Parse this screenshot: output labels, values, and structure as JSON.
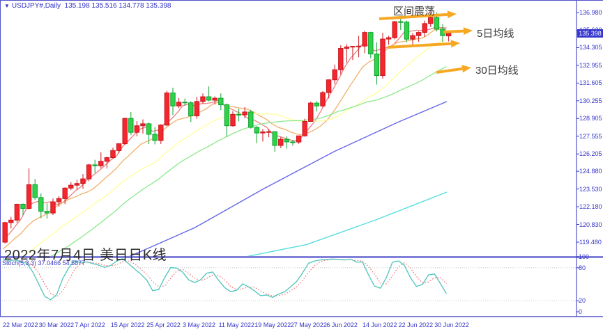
{
  "header": {
    "symbol": "USDJPY#,Daily",
    "ohlc_line": "135.198 135.516 134.778 135.398"
  },
  "annotations": {
    "range_label": "区间震荡",
    "ma5_label": "5日均线",
    "ma30_label": "30日均线",
    "watermark": "2022年7月4日 美日日K线"
  },
  "indicator": {
    "label": "Stoch(5,3,3)",
    "values": "37.0466 54.5877"
  },
  "price_box": {
    "value": "135.398"
  },
  "axes": {
    "price_labels": [
      "136.980",
      "135.630",
      "134.305",
      "132.955",
      "131.605",
      "130.255",
      "128.905",
      "127.555",
      "126.205",
      "124.880",
      "123.530",
      "122.180",
      "120.830",
      "119.480"
    ],
    "stoch_labels": [
      "100",
      "80",
      "20",
      "0"
    ],
    "time_ticks": [
      {
        "label": "22 Mar 2022",
        "i": 0
      },
      {
        "label": "30 Mar 2022",
        "i": 6
      },
      {
        "label": "7 Apr 2022",
        "i": 12
      },
      {
        "label": "15 Apr 2022",
        "i": 18
      },
      {
        "label": "25 Apr 2022",
        "i": 24
      },
      {
        "label": "3 May 2022",
        "i": 30
      },
      {
        "label": "11 May 2022",
        "i": 36
      },
      {
        "label": "19 May 2022",
        "i": 42
      },
      {
        "label": "27 May 2022",
        "i": 48
      },
      {
        "label": "6 Jun 2022",
        "i": 54
      },
      {
        "label": "14 Jun 2022",
        "i": 60
      },
      {
        "label": "22 Jun 2022",
        "i": 66
      },
      {
        "label": "30 Jun 2022",
        "i": 72
      }
    ]
  },
  "colors": {
    "up_fill": "#f4262e",
    "up_stroke": "#c8141c",
    "down_fill": "#30d24a",
    "down_stroke": "#0da02e",
    "ma5": "#ef7f7f",
    "ma10": "#f2b06a",
    "ma20": "#ffff99",
    "ma30": "#8ce98c",
    "ma60": "#6666e8",
    "maLong": "#55dede",
    "stoch_k": "#57c7c0",
    "stoch_d": "#f36a6a",
    "arrow": "#f7a823",
    "axis_text": "#3434c8",
    "frame": "#5050c8",
    "divider": "#8080d8",
    "grid_dots": "#c9c9c9",
    "price_box_bg": "#3737cf"
  },
  "chart_data": {
    "type": "candlestick",
    "symbol": "USDJPY#",
    "timeframe": "Daily",
    "title": "2022年7月4日 美日日K线",
    "ylim": [
      119.48,
      136.98
    ],
    "stoch_ylim": [
      0,
      100
    ],
    "legend_position": "none",
    "grid": false,
    "dates": [
      "2022-03-22",
      "2022-03-23",
      "2022-03-24",
      "2022-03-25",
      "2022-03-28",
      "2022-03-29",
      "2022-03-30",
      "2022-03-31",
      "2022-04-01",
      "2022-04-04",
      "2022-04-05",
      "2022-04-06",
      "2022-04-07",
      "2022-04-08",
      "2022-04-11",
      "2022-04-12",
      "2022-04-13",
      "2022-04-14",
      "2022-04-15",
      "2022-04-18",
      "2022-04-19",
      "2022-04-20",
      "2022-04-21",
      "2022-04-22",
      "2022-04-25",
      "2022-04-26",
      "2022-04-27",
      "2022-04-28",
      "2022-04-29",
      "2022-05-02",
      "2022-05-03",
      "2022-05-04",
      "2022-05-05",
      "2022-05-06",
      "2022-05-09",
      "2022-05-10",
      "2022-05-11",
      "2022-05-12",
      "2022-05-13",
      "2022-05-16",
      "2022-05-17",
      "2022-05-18",
      "2022-05-19",
      "2022-05-20",
      "2022-05-23",
      "2022-05-24",
      "2022-05-25",
      "2022-05-26",
      "2022-05-27",
      "2022-05-30",
      "2022-05-31",
      "2022-06-01",
      "2022-06-02",
      "2022-06-03",
      "2022-06-06",
      "2022-06-07",
      "2022-06-08",
      "2022-06-09",
      "2022-06-10",
      "2022-06-13",
      "2022-06-14",
      "2022-06-15",
      "2022-06-16",
      "2022-06-17",
      "2022-06-20",
      "2022-06-21",
      "2022-06-22",
      "2022-06-23",
      "2022-06-24",
      "2022-06-27",
      "2022-06-28",
      "2022-06-29",
      "2022-06-30",
      "2022-07-01",
      "2022-07-04"
    ],
    "ohlc": [
      [
        119.48,
        121.03,
        119.38,
        120.97
      ],
      [
        120.97,
        121.41,
        120.53,
        121.16
      ],
      [
        121.16,
        122.41,
        120.95,
        122.37
      ],
      [
        122.37,
        122.43,
        121.53,
        122.05
      ],
      [
        122.05,
        125.1,
        121.97,
        123.86
      ],
      [
        123.86,
        124.3,
        122.7,
        122.88
      ],
      [
        122.88,
        123.2,
        121.31,
        121.83
      ],
      [
        121.83,
        122.44,
        121.28,
        121.7
      ],
      [
        121.7,
        122.81,
        121.55,
        122.55
      ],
      [
        122.55,
        122.98,
        122.18,
        122.8
      ],
      [
        122.8,
        123.66,
        122.38,
        123.6
      ],
      [
        123.6,
        124.05,
        123.45,
        123.82
      ],
      [
        123.82,
        124.23,
        123.47,
        123.95
      ],
      [
        123.95,
        124.67,
        123.56,
        124.3
      ],
      [
        124.3,
        125.44,
        124.12,
        125.37
      ],
      [
        125.37,
        125.76,
        124.75,
        125.3
      ],
      [
        125.3,
        126.32,
        125.12,
        125.64
      ],
      [
        125.64,
        126.0,
        125.09,
        125.92
      ],
      [
        125.92,
        126.68,
        125.83,
        126.46
      ],
      [
        126.46,
        126.99,
        126.26,
        126.98
      ],
      [
        126.98,
        128.97,
        126.91,
        128.91
      ],
      [
        128.91,
        129.4,
        127.64,
        127.85
      ],
      [
        127.85,
        128.7,
        127.55,
        128.35
      ],
      [
        128.35,
        128.83,
        127.75,
        128.5
      ],
      [
        128.5,
        128.6,
        126.95,
        127.7
      ],
      [
        127.7,
        128.25,
        126.93,
        127.23
      ],
      [
        127.23,
        128.47,
        126.96,
        128.4
      ],
      [
        128.4,
        131.01,
        128.33,
        130.85
      ],
      [
        130.85,
        131.25,
        129.18,
        129.86
      ],
      [
        129.86,
        130.47,
        129.7,
        130.15
      ],
      [
        130.15,
        130.42,
        129.88,
        130.1
      ],
      [
        130.1,
        130.21,
        128.63,
        129.1
      ],
      [
        129.1,
        130.56,
        128.88,
        130.2
      ],
      [
        130.2,
        130.81,
        130.05,
        130.56
      ],
      [
        130.56,
        131.35,
        130.22,
        130.3
      ],
      [
        130.3,
        130.59,
        129.97,
        130.45
      ],
      [
        130.45,
        130.82,
        129.54,
        129.95
      ],
      [
        129.95,
        130.05,
        127.51,
        128.35
      ],
      [
        128.35,
        129.46,
        128.28,
        129.22
      ],
      [
        129.22,
        129.65,
        128.68,
        129.18
      ],
      [
        129.18,
        129.78,
        128.93,
        129.4
      ],
      [
        129.4,
        129.57,
        128.13,
        128.23
      ],
      [
        128.23,
        128.31,
        127.02,
        127.8
      ],
      [
        127.8,
        128.09,
        127.15,
        127.88
      ],
      [
        127.88,
        128.09,
        127.48,
        127.9
      ],
      [
        127.9,
        127.94,
        126.36,
        126.85
      ],
      [
        126.85,
        127.5,
        126.65,
        127.32
      ],
      [
        127.32,
        127.54,
        126.61,
        127.12
      ],
      [
        127.12,
        127.27,
        126.84,
        127.11
      ],
      [
        127.11,
        127.59,
        126.97,
        127.58
      ],
      [
        127.58,
        128.89,
        127.52,
        128.68
      ],
      [
        128.68,
        130.2,
        128.65,
        130.08
      ],
      [
        130.08,
        130.23,
        129.44,
        129.86
      ],
      [
        129.86,
        130.99,
        129.75,
        130.88
      ],
      [
        130.88,
        131.88,
        130.44,
        131.85
      ],
      [
        131.85,
        133.01,
        131.53,
        132.62
      ],
      [
        132.62,
        134.48,
        132.26,
        134.25
      ],
      [
        134.25,
        134.56,
        133.17,
        134.36
      ],
      [
        134.36,
        134.43,
        133.36,
        134.4
      ],
      [
        134.4,
        135.2,
        133.57,
        134.42
      ],
      [
        134.42,
        135.59,
        133.88,
        135.46
      ],
      [
        135.46,
        135.51,
        133.49,
        133.82
      ],
      [
        133.82,
        134.71,
        131.49,
        132.18
      ],
      [
        132.18,
        135.44,
        131.94,
        134.96
      ],
      [
        134.96,
        135.21,
        134.52,
        135.06
      ],
      [
        135.06,
        136.34,
        134.94,
        136.28
      ],
      [
        136.28,
        136.71,
        135.65,
        136.25
      ],
      [
        136.25,
        136.36,
        134.72,
        134.95
      ],
      [
        134.95,
        135.41,
        134.52,
        135.22
      ],
      [
        135.22,
        135.54,
        134.75,
        135.46
      ],
      [
        135.46,
        136.36,
        135.11,
        136.14
      ],
      [
        136.14,
        137.0,
        135.87,
        136.6
      ],
      [
        136.6,
        136.99,
        135.54,
        135.72
      ],
      [
        135.72,
        136.1,
        134.74,
        135.22
      ],
      [
        135.198,
        135.516,
        134.778,
        135.398
      ]
    ],
    "pre_closes": [
      114.9,
      115.2,
      115.4,
      115.2,
      115.6,
      115.3,
      115.0,
      114.9,
      115.6,
      115.1,
      115.5,
      114.8,
      115.1,
      115.5,
      114.9,
      115.0,
      115.3,
      115.6,
      115.8,
      116.1,
      117.3,
      118.2,
      118.3,
      118.7,
      118.6,
      119.2,
      119.5,
      119.2,
      119.5
    ],
    "moving_averages": [
      {
        "name": "MA5",
        "period": 5,
        "color_key": "ma5"
      },
      {
        "name": "MA10",
        "period": 10,
        "color_key": "ma10"
      },
      {
        "name": "MA20",
        "period": 20,
        "color_key": "ma20"
      },
      {
        "name": "MA30",
        "period": 30,
        "color_key": "ma30"
      }
    ],
    "long_lines": [
      {
        "name": "MA60",
        "color_key": "ma60",
        "points": [
          [
            182,
            118.3
          ],
          [
            280,
            120.6
          ],
          [
            380,
            123.6
          ],
          [
            480,
            126.4
          ],
          [
            570,
            128.6
          ],
          [
            641,
            130.2
          ]
        ]
      },
      {
        "name": "MA-long",
        "color_key": "maLong",
        "points": [
          [
            346,
            118.3
          ],
          [
            440,
            119.3
          ],
          [
            540,
            121.2
          ],
          [
            641,
            123.3
          ]
        ]
      }
    ],
    "stochastic": {
      "k_period": 5,
      "slowing": 3,
      "d_period": 3,
      "k": 37.0466,
      "d": 54.5877,
      "levels": [
        80,
        20
      ]
    }
  }
}
